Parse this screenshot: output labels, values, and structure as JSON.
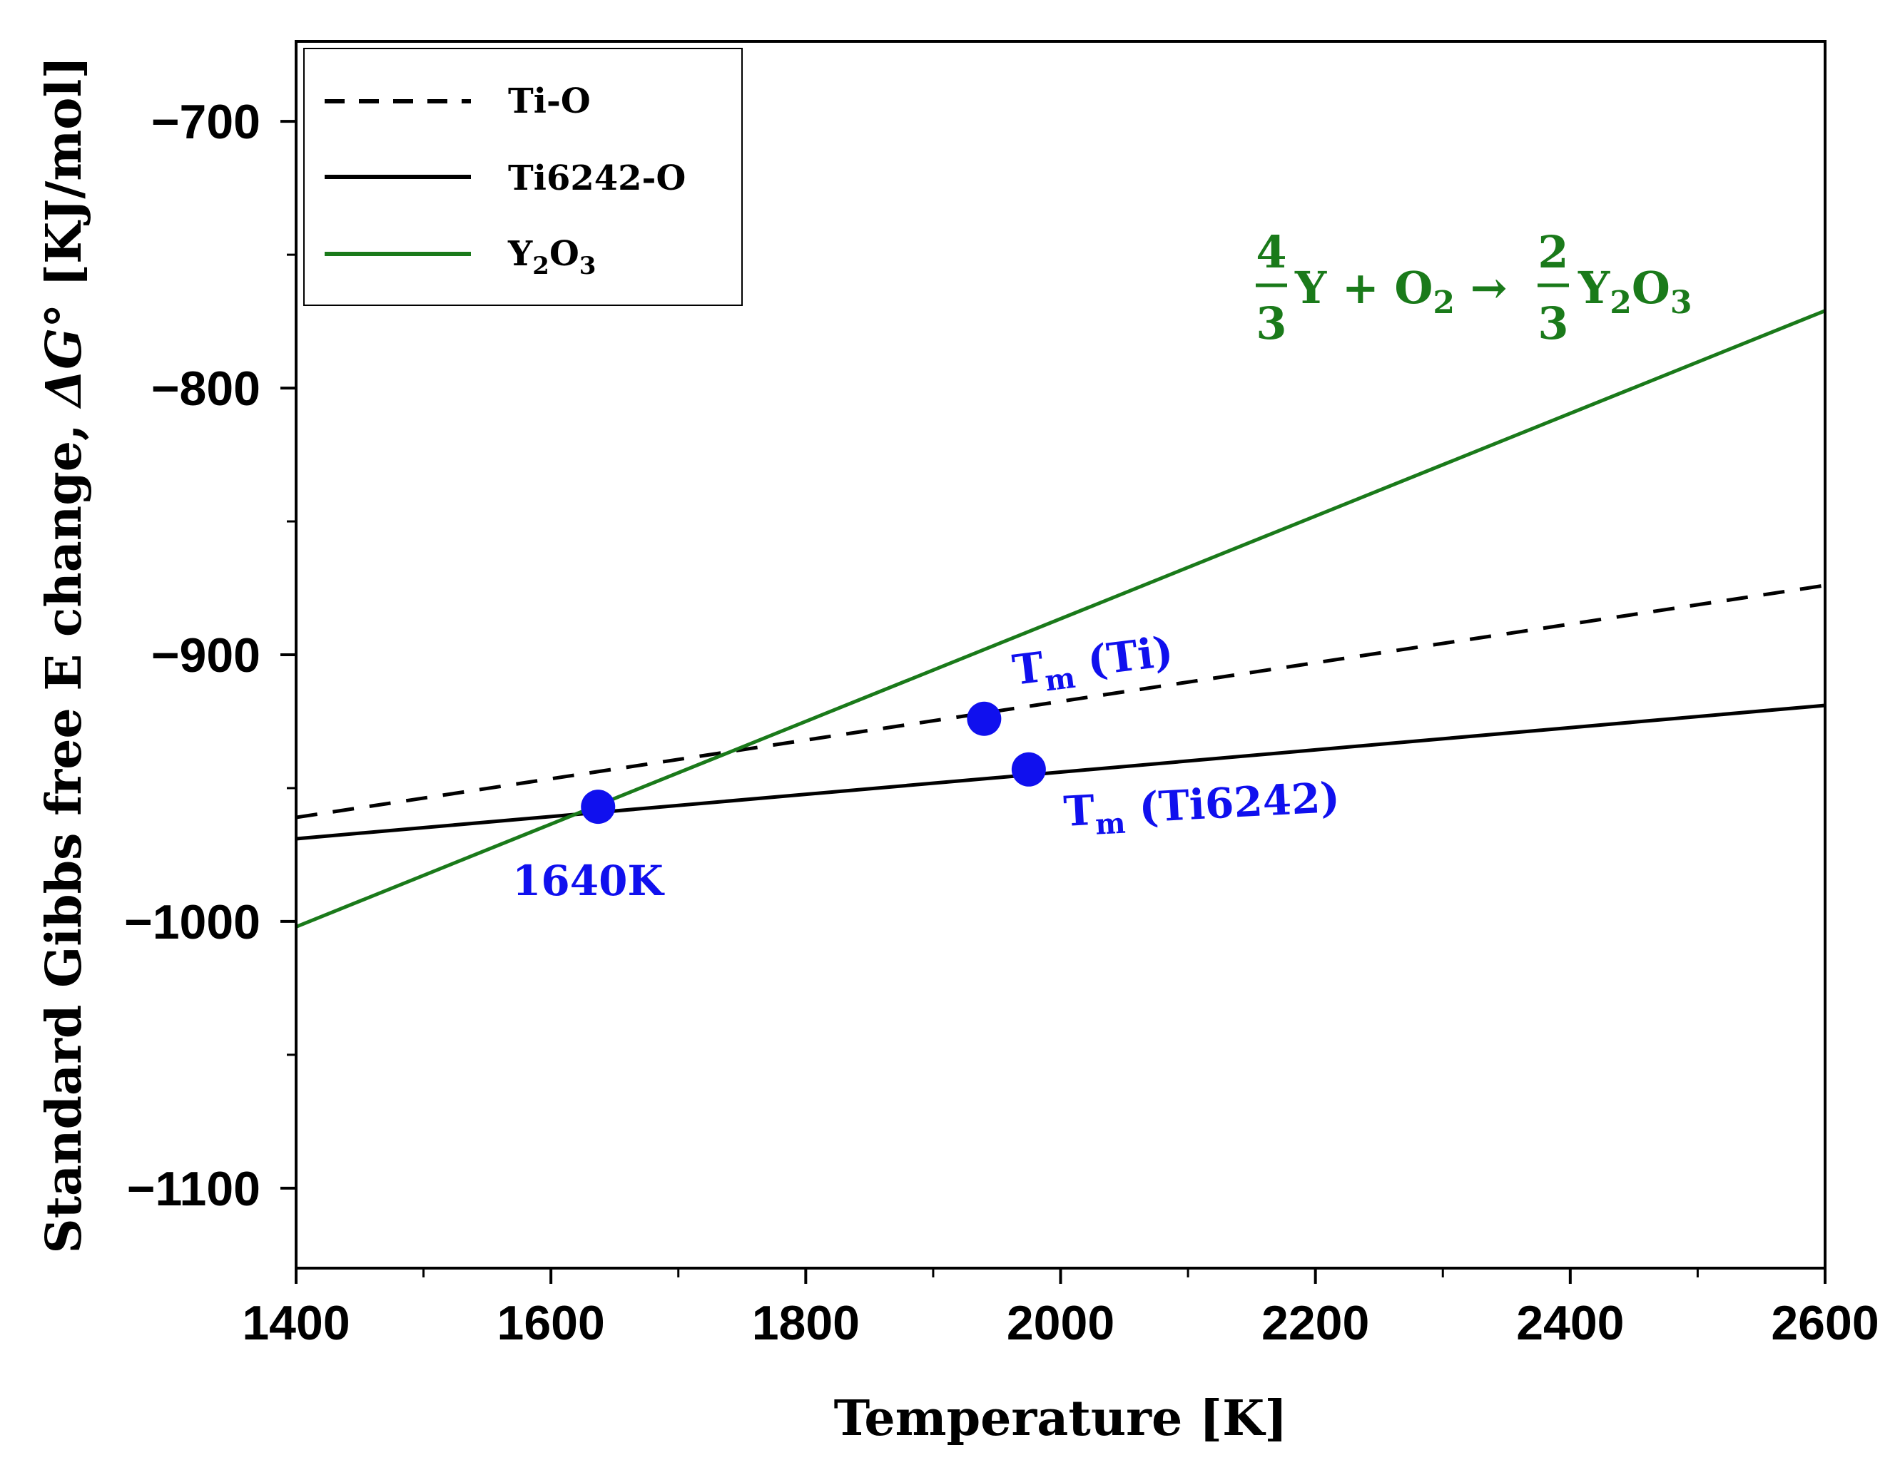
{
  "chart_data": {
    "type": "line",
    "xlabel": "Temperature [K]",
    "ylabel": {
      "prefix": "Standard Gibbs free E change, ",
      "symbol": "ΔG°",
      "suffix": " [KJ/mol]"
    },
    "xlim": [
      1400,
      2600
    ],
    "ylim": [
      -1130,
      -670
    ],
    "x_ticks": [
      1400,
      1600,
      1800,
      2000,
      2200,
      2400,
      2600
    ],
    "x_tick_labels": [
      "1400",
      "1600",
      "1800",
      "2000",
      "2200",
      "2400",
      "2600"
    ],
    "y_ticks": [
      -700,
      -800,
      -900,
      -1000,
      -1100
    ],
    "y_tick_labels": [
      "−700",
      "−800",
      "−900",
      "−1000",
      "−1100"
    ],
    "grid": false,
    "legend_position": "top-left",
    "series": [
      {
        "name": "Ti-O",
        "color": "#000000",
        "dash": "dashed",
        "x": [
          1400,
          2600
        ],
        "y": [
          -961,
          -874
        ]
      },
      {
        "name": "Ti6242-O",
        "color": "#000000",
        "dash": "solid",
        "x": [
          1400,
          2600
        ],
        "y": [
          -969,
          -919
        ]
      },
      {
        "name": "Y2O3",
        "color": "#1a7a1a",
        "dash": "solid",
        "x": [
          1400,
          2600
        ],
        "y": [
          -1002,
          -771
        ]
      }
    ],
    "legend": [
      {
        "label": "Ti-O",
        "series": 0
      },
      {
        "label": "Ti6242-O",
        "series": 1
      },
      {
        "label": "Y",
        "sub1": "2",
        "mid": "O",
        "sub2": "3",
        "series": 2
      }
    ],
    "points": [
      {
        "name": "intersection",
        "x": 1637,
        "y": -957,
        "color": "#1010ee"
      },
      {
        "name": "tm-ti",
        "x": 1940,
        "y": -924,
        "color": "#1010ee"
      },
      {
        "name": "tm-ti6242",
        "x": 1975,
        "y": -943,
        "color": "#1010ee"
      }
    ],
    "annotations": {
      "intersection_label": "1640K",
      "tm_ti": {
        "main": "T",
        "sub": "m",
        "rest": " (Ti)"
      },
      "tm_ti6242": {
        "main": "T",
        "sub": "m",
        "rest": " (Ti6242)"
      },
      "annotation_color": "#1010ee"
    },
    "equation": {
      "frac1_num": "4",
      "frac1_den": "3",
      "term1": "Y + O",
      "term1_sub": "2",
      "arrow": " → ",
      "frac2_num": "2",
      "frac2_den": "3",
      "term2_a": "Y",
      "term2_sub1": "2",
      "term2_b": "O",
      "term2_sub2": "3",
      "color": "#1a7a1a"
    }
  }
}
